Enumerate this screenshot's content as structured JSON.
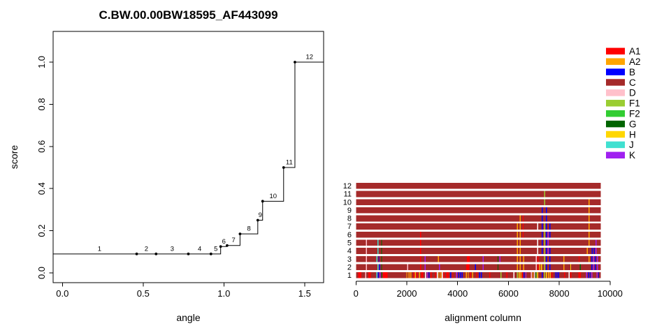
{
  "colors": {
    "A1": "#FF0000",
    "A2": "#FFA500",
    "B": "#0000FF",
    "C": "#A52A2A",
    "D": "#FFC0CB",
    "F1": "#9ACD32",
    "F2": "#32CD32",
    "G": "#006400",
    "H": "#FFD700",
    "J": "#40E0D0",
    "K": "#A020F0",
    "W": "#FFFFFF"
  },
  "legend": {
    "position": "right",
    "entries": [
      "A1",
      "A2",
      "B",
      "C",
      "D",
      "F1",
      "F2",
      "G",
      "H",
      "J",
      "K"
    ]
  },
  "chart_data": [
    {
      "type": "line",
      "subtype": "step",
      "title": "C.BW.00.00BW18595_AF443099",
      "xlabel": "angle",
      "ylabel": "score",
      "x_ticks": [
        0,
        0.5,
        1,
        1.5
      ],
      "x_tick_labels": [
        "0.0",
        "0.5",
        "1.0",
        "1.5"
      ],
      "y_ticks": [
        0,
        0.2,
        0.4,
        0.6,
        0.8,
        1.0
      ],
      "y_tick_labels": [
        "0.0",
        "0.2",
        "0.4",
        "0.6",
        "0.8",
        "1.0"
      ],
      "xlim": [
        -0.06,
        1.62
      ],
      "ylim": [
        -0.05,
        1.12
      ],
      "grid": false,
      "line_start_angle": -0.06,
      "line_end_angle": 1.62,
      "points": [
        {
          "label": "1",
          "angle": 0.0,
          "score": 0.09,
          "dot": false
        },
        {
          "label": "2",
          "angle": 0.46,
          "score": 0.09,
          "dot": true
        },
        {
          "label": "3",
          "angle": 0.58,
          "score": 0.09,
          "dot": true
        },
        {
          "label": "4",
          "angle": 0.78,
          "score": 0.09,
          "dot": true
        },
        {
          "label": "5",
          "angle": 0.92,
          "score": 0.09,
          "dot": true
        },
        {
          "label": "6",
          "angle": 0.98,
          "score": 0.125,
          "dot": true
        },
        {
          "label": "7",
          "angle": 1.02,
          "score": 0.13,
          "dot": true
        },
        {
          "label": "8",
          "angle": 1.1,
          "score": 0.185,
          "dot": true
        },
        {
          "label": "9",
          "angle": 1.21,
          "score": 0.25,
          "dot": true
        },
        {
          "label": "10",
          "angle": 1.24,
          "score": 0.34,
          "dot": true
        },
        {
          "label": "11",
          "angle": 1.37,
          "score": 0.5,
          "dot": true
        },
        {
          "label": "12",
          "angle": 1.44,
          "score": 1.0,
          "dot": true
        }
      ]
    },
    {
      "type": "bar",
      "subtype": "alignment-rows",
      "xlabel": "alignment column",
      "x_ticks": [
        0,
        2000,
        4000,
        6000,
        8000,
        10000
      ],
      "x_tick_labels": [
        "0",
        "2000",
        "4000",
        "6000",
        "8000",
        "10000"
      ],
      "xlim": [
        0,
        10000
      ],
      "alignment_length": 9630,
      "base_color_key": "C",
      "default_stripe_width": 40,
      "rows": [
        {
          "label": "1",
          "stripes": [
            [
              150,
              "A1",
              120
            ],
            [
              385,
              "D"
            ],
            [
              540,
              "A1",
              100
            ],
            [
              825,
              "J"
            ],
            [
              880,
              "B"
            ],
            [
              945,
              "K"
            ],
            [
              1010,
              "G"
            ],
            [
              1150,
              "A1",
              180
            ],
            [
              2000,
              "A2"
            ],
            [
              2090,
              "A2"
            ],
            [
              2155,
              "A2"
            ],
            [
              2280,
              "A1"
            ],
            [
              2340,
              "A2"
            ],
            [
              2410,
              "A1"
            ],
            [
              2500,
              "A2"
            ],
            [
              2600,
              "A1",
              80
            ],
            [
              2740,
              "W"
            ],
            [
              2800,
              "K"
            ],
            [
              2870,
              "B"
            ],
            [
              2950,
              "A1"
            ],
            [
              3135,
              "A1"
            ],
            [
              3200,
              "W"
            ],
            [
              3265,
              "H"
            ],
            [
              3340,
              "A2"
            ],
            [
              3400,
              "W"
            ],
            [
              3470,
              "A1"
            ],
            [
              3600,
              "A1",
              90
            ],
            [
              3730,
              "B"
            ],
            [
              3815,
              "A1"
            ],
            [
              3960,
              "K"
            ],
            [
              4040,
              "B"
            ],
            [
              4115,
              "B"
            ],
            [
              4180,
              "B"
            ],
            [
              4345,
              "A2"
            ],
            [
              4420,
              "A2"
            ],
            [
              4510,
              "A1"
            ],
            [
              4590,
              "A2"
            ],
            [
              4760,
              "A1"
            ],
            [
              4870,
              "B"
            ],
            [
              4940,
              "B"
            ],
            [
              5270,
              "A1"
            ],
            [
              5705,
              "F1"
            ],
            [
              5940,
              "A1"
            ],
            [
              6215,
              "W"
            ],
            [
              6355,
              "F1"
            ],
            [
              6420,
              "H"
            ],
            [
              6490,
              "A2"
            ],
            [
              6555,
              "A1"
            ],
            [
              6620,
              "B"
            ],
            [
              6690,
              "K"
            ],
            [
              6900,
              "D"
            ],
            [
              6965,
              "A2"
            ],
            [
              7020,
              "W"
            ],
            [
              7085,
              "F2"
            ],
            [
              7150,
              "H"
            ],
            [
              7330,
              "B"
            ],
            [
              7420,
              "F1"
            ],
            [
              7500,
              "H"
            ],
            [
              7575,
              "A2"
            ],
            [
              7640,
              "A2"
            ],
            [
              7710,
              "A1"
            ],
            [
              7845,
              "B"
            ],
            [
              7910,
              "B"
            ],
            [
              7975,
              "B"
            ],
            [
              8210,
              "A1"
            ],
            [
              8390,
              "W"
            ],
            [
              8455,
              "A1"
            ],
            [
              8800,
              "A1",
              90
            ],
            [
              9080,
              "K"
            ],
            [
              9155,
              "B"
            ],
            [
              9220,
              "B"
            ],
            [
              9285,
              "K"
            ],
            [
              9490,
              "K"
            ],
            [
              9550,
              "B"
            ]
          ]
        },
        {
          "label": "2",
          "stripes": [
            [
              410,
              "D"
            ],
            [
              870,
              "J"
            ],
            [
              940,
              "B"
            ],
            [
              1010,
              "G"
            ],
            [
              2040,
              "D"
            ],
            [
              2540,
              "A1"
            ],
            [
              2720,
              "K"
            ],
            [
              3290,
              "K"
            ],
            [
              4400,
              "A1",
              120
            ],
            [
              4700,
              "B"
            ],
            [
              5000,
              "K"
            ],
            [
              5590,
              "G"
            ],
            [
              6350,
              "A2"
            ],
            [
              6460,
              "A2"
            ],
            [
              6600,
              "A2"
            ],
            [
              7100,
              "D"
            ],
            [
              7170,
              "A1"
            ],
            [
              7230,
              "A2"
            ],
            [
              7300,
              "H"
            ],
            [
              7420,
              "F1"
            ],
            [
              7495,
              "B"
            ],
            [
              7630,
              "B"
            ],
            [
              8180,
              "A2"
            ],
            [
              8450,
              "H"
            ],
            [
              8830,
              "G"
            ],
            [
              9280,
              "B"
            ],
            [
              9350,
              "K"
            ],
            [
              9420,
              "B"
            ],
            [
              9500,
              "K"
            ]
          ]
        },
        {
          "label": "3",
          "stripes": [
            [
              410,
              "D"
            ],
            [
              830,
              "J"
            ],
            [
              900,
              "B"
            ],
            [
              1010,
              "G"
            ],
            [
              2540,
              "A1"
            ],
            [
              2720,
              "K"
            ],
            [
              3240,
              "A2"
            ],
            [
              4420,
              "A1",
              100
            ],
            [
              5000,
              "K"
            ],
            [
              5590,
              "G"
            ],
            [
              5660,
              "K"
            ],
            [
              6350,
              "A2"
            ],
            [
              6460,
              "A2"
            ],
            [
              6600,
              "A2"
            ],
            [
              7100,
              "D"
            ],
            [
              7170,
              "A1"
            ],
            [
              7420,
              "F1"
            ],
            [
              7495,
              "B"
            ],
            [
              7630,
              "B"
            ],
            [
              8180,
              "A2"
            ],
            [
              8780,
              "A1"
            ],
            [
              9170,
              "A2"
            ],
            [
              9280,
              "B"
            ],
            [
              9350,
              "K"
            ],
            [
              9420,
              "B"
            ],
            [
              9500,
              "K"
            ]
          ]
        },
        {
          "label": "4",
          "stripes": [
            [
              410,
              "D"
            ],
            [
              870,
              "J"
            ],
            [
              1010,
              "G"
            ],
            [
              2540,
              "A1"
            ],
            [
              6350,
              "A2"
            ],
            [
              6460,
              "A2"
            ],
            [
              7145,
              "W"
            ],
            [
              7330,
              "B"
            ],
            [
              7420,
              "F1"
            ],
            [
              7495,
              "B"
            ],
            [
              7560,
              "K"
            ],
            [
              7630,
              "B"
            ],
            [
              9100,
              "A2"
            ],
            [
              9290,
              "B"
            ],
            [
              9380,
              "B"
            ],
            [
              9450,
              "K"
            ]
          ]
        },
        {
          "label": "5",
          "stripes": [
            [
              410,
              "D"
            ],
            [
              870,
              "J"
            ],
            [
              1010,
              "G"
            ],
            [
              2540,
              "A1"
            ],
            [
              6350,
              "A2"
            ],
            [
              6460,
              "A2"
            ],
            [
              7145,
              "W"
            ],
            [
              7330,
              "B"
            ],
            [
              7420,
              "F1"
            ],
            [
              7495,
              "B"
            ],
            [
              7560,
              "K"
            ],
            [
              9170,
              "A2"
            ],
            [
              9450,
              "K"
            ]
          ]
        },
        {
          "label": "6",
          "stripes": [
            [
              2540,
              "A1"
            ],
            [
              6350,
              "A2"
            ],
            [
              6460,
              "A2"
            ],
            [
              6580,
              "A1"
            ],
            [
              7330,
              "B"
            ],
            [
              7420,
              "F1"
            ],
            [
              7495,
              "B"
            ],
            [
              7560,
              "K"
            ],
            [
              7630,
              "B"
            ],
            [
              9170,
              "A2"
            ]
          ]
        },
        {
          "label": "7",
          "stripes": [
            [
              6350,
              "A2"
            ],
            [
              6460,
              "A2"
            ],
            [
              6580,
              "A1"
            ],
            [
              7145,
              "W"
            ],
            [
              7330,
              "B"
            ],
            [
              7420,
              "F1"
            ],
            [
              7495,
              "B"
            ],
            [
              7630,
              "B"
            ],
            [
              9170,
              "A2"
            ]
          ]
        },
        {
          "label": "8",
          "stripes": [
            [
              6460,
              "A2"
            ],
            [
              6580,
              "A1"
            ],
            [
              7330,
              "B"
            ],
            [
              7495,
              "B"
            ],
            [
              9170,
              "A2"
            ]
          ]
        },
        {
          "label": "9",
          "stripes": [
            [
              7330,
              "B"
            ],
            [
              7495,
              "B"
            ],
            [
              9170,
              "A2"
            ]
          ]
        },
        {
          "label": "10",
          "stripes": [
            [
              7420,
              "F1"
            ],
            [
              9170,
              "A2"
            ]
          ]
        },
        {
          "label": "11",
          "stripes": [
            [
              7420,
              "F1"
            ]
          ]
        },
        {
          "label": "12",
          "stripes": []
        }
      ]
    }
  ]
}
